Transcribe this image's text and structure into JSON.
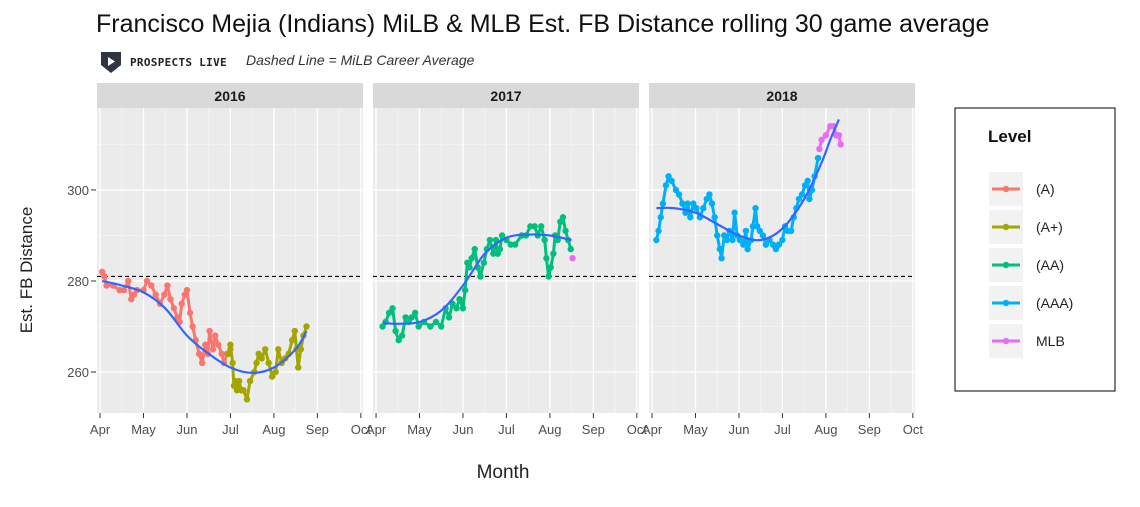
{
  "title": "Francisco Mejia (Indians) MiLB & MLB Est. FB Distance rolling 30 game average",
  "brand": {
    "name": "PROSPECTS LIVE",
    "logo_icon": "play-shield-icon"
  },
  "subtitle": "Dashed Line = MiLB Career Average",
  "chart_data": {
    "type": "line",
    "xlabel": "Month",
    "ylabel": "Est. FB Distance",
    "ylim": [
      251,
      318
    ],
    "yticks": [
      260,
      280,
      300
    ],
    "xticks": [
      "Apr",
      "May",
      "Jun",
      "Jul",
      "Aug",
      "Sep",
      "Oct"
    ],
    "xlim_month": [
      3.93,
      10.05
    ],
    "reference_line": {
      "value": 281,
      "style": "dashed"
    },
    "grid": true,
    "legend": {
      "title": "Level",
      "position": "right",
      "entries": [
        {
          "label": "(A)",
          "color": "#F8766D"
        },
        {
          "label": "(A+)",
          "color": "#A3A500"
        },
        {
          "label": "(AA)",
          "color": "#00BF7D"
        },
        {
          "label": "(AAA)",
          "color": "#00B0F6"
        },
        {
          "label": "MLB",
          "color": "#E76BF3"
        }
      ]
    },
    "smooth_color": "#3366FF",
    "panels": [
      {
        "label": "2016",
        "series": [
          {
            "name": "(A)",
            "points": [
              [
                4.05,
                282
              ],
              [
                4.1,
                281
              ],
              [
                4.15,
                279
              ],
              [
                4.3,
                279
              ],
              [
                4.45,
                278
              ],
              [
                4.55,
                278
              ],
              [
                4.65,
                280
              ],
              [
                4.72,
                276
              ],
              [
                4.78,
                277
              ],
              [
                4.85,
                278
              ],
              [
                5.0,
                278
              ],
              [
                5.08,
                280
              ],
              [
                5.18,
                279
              ],
              [
                5.28,
                277
              ],
              [
                5.38,
                275
              ],
              [
                5.48,
                277
              ],
              [
                5.55,
                279
              ],
              [
                5.62,
                276
              ],
              [
                5.7,
                274
              ],
              [
                5.78,
                272
              ],
              [
                5.83,
                271
              ],
              [
                5.88,
                275
              ],
              [
                5.95,
                277
              ],
              [
                6.0,
                278
              ],
              [
                6.07,
                273
              ],
              [
                6.13,
                270
              ],
              [
                6.2,
                267
              ],
              [
                6.28,
                264
              ],
              [
                6.35,
                262
              ],
              [
                6.42,
                266
              ],
              [
                6.48,
                264
              ],
              [
                6.52,
                269
              ],
              [
                6.6,
                265
              ],
              [
                6.65,
                268
              ],
              [
                6.72,
                266
              ],
              [
                6.8,
                264
              ],
              [
                6.85,
                262
              ],
              [
                6.92,
                264
              ],
              [
                7.0,
                265
              ]
            ]
          },
          {
            "name": "(A+)",
            "points": [
              [
                6.95,
                264
              ],
              [
                7.0,
                266
              ],
              [
                7.05,
                262
              ],
              [
                7.08,
                257
              ],
              [
                7.12,
                258
              ],
              [
                7.15,
                256
              ],
              [
                7.2,
                258
              ],
              [
                7.25,
                256
              ],
              [
                7.3,
                256
              ],
              [
                7.38,
                254
              ],
              [
                7.45,
                258
              ],
              [
                7.55,
                260
              ],
              [
                7.6,
                262
              ],
              [
                7.65,
                264
              ],
              [
                7.72,
                263
              ],
              [
                7.8,
                265
              ],
              [
                7.88,
                262
              ],
              [
                7.96,
                259
              ],
              [
                8.04,
                260
              ],
              [
                8.1,
                265
              ],
              [
                8.18,
                262
              ],
              [
                8.26,
                263
              ],
              [
                8.34,
                264
              ],
              [
                8.42,
                267
              ],
              [
                8.48,
                269
              ],
              [
                8.52,
                265
              ],
              [
                8.56,
                261
              ],
              [
                8.62,
                265
              ],
              [
                8.68,
                268
              ],
              [
                8.75,
                270
              ]
            ]
          }
        ],
        "smooth": [
          [
            4.05,
            280
          ],
          [
            4.5,
            279
          ],
          [
            5.0,
            277.5
          ],
          [
            5.5,
            274
          ],
          [
            6.0,
            268
          ],
          [
            6.5,
            264
          ],
          [
            7.0,
            261
          ],
          [
            7.5,
            259.8
          ],
          [
            8.0,
            261
          ],
          [
            8.5,
            265
          ],
          [
            8.75,
            269
          ]
        ]
      },
      {
        "label": "2017",
        "series": [
          {
            "name": "(AA)",
            "points": [
              [
                4.15,
                270
              ],
              [
                4.22,
                271
              ],
              [
                4.3,
                273
              ],
              [
                4.38,
                274
              ],
              [
                4.45,
                269
              ],
              [
                4.52,
                267
              ],
              [
                4.6,
                268
              ],
              [
                4.68,
                272
              ],
              [
                4.75,
                271
              ],
              [
                4.82,
                272
              ],
              [
                4.9,
                273
              ],
              [
                4.98,
                270
              ],
              [
                5.1,
                271
              ],
              [
                5.25,
                270
              ],
              [
                5.38,
                271
              ],
              [
                5.5,
                270
              ],
              [
                5.6,
                274
              ],
              [
                5.68,
                272
              ],
              [
                5.76,
                275
              ],
              [
                5.85,
                274
              ],
              [
                5.92,
                276
              ],
              [
                6.0,
                274
              ],
              [
                6.05,
                278
              ],
              [
                6.1,
                284
              ],
              [
                6.15,
                283
              ],
              [
                6.2,
                285
              ],
              [
                6.27,
                287
              ],
              [
                6.34,
                283
              ],
              [
                6.4,
                281
              ],
              [
                6.48,
                284
              ],
              [
                6.55,
                287
              ],
              [
                6.62,
                289
              ],
              [
                6.7,
                286
              ],
              [
                6.76,
                289
              ],
              [
                6.8,
                286
              ],
              [
                6.85,
                287
              ],
              [
                6.9,
                290
              ],
              [
                7.0,
                289
              ],
              [
                7.1,
                288
              ],
              [
                7.2,
                288
              ],
              [
                7.35,
                290
              ],
              [
                7.45,
                290
              ],
              [
                7.55,
                292
              ],
              [
                7.65,
                292
              ],
              [
                7.72,
                290
              ],
              [
                7.8,
                292
              ],
              [
                7.88,
                289
              ],
              [
                7.92,
                285
              ],
              [
                7.97,
                281
              ],
              [
                8.02,
                283
              ],
              [
                8.08,
                286
              ],
              [
                8.12,
                290
              ],
              [
                8.18,
                289
              ],
              [
                8.24,
                293
              ],
              [
                8.3,
                294
              ],
              [
                8.36,
                291
              ],
              [
                8.42,
                289
              ],
              [
                8.48,
                287
              ]
            ]
          },
          {
            "name": "MLB",
            "points": [
              [
                8.52,
                285
              ]
            ]
          }
        ],
        "smooth": [
          [
            4.15,
            270.8
          ],
          [
            4.5,
            270.6
          ],
          [
            5.0,
            271
          ],
          [
            5.5,
            273.5
          ],
          [
            6.0,
            279
          ],
          [
            6.5,
            286
          ],
          [
            7.0,
            289.5
          ],
          [
            7.5,
            290.2
          ],
          [
            8.0,
            290
          ],
          [
            8.5,
            289
          ]
        ]
      },
      {
        "label": "2018",
        "series": [
          {
            "name": "(AAA)",
            "points": [
              [
                4.1,
                289
              ],
              [
                4.15,
                291
              ],
              [
                4.2,
                294
              ],
              [
                4.25,
                297
              ],
              [
                4.32,
                301
              ],
              [
                4.38,
                303
              ],
              [
                4.45,
                302
              ],
              [
                4.55,
                300
              ],
              [
                4.62,
                299
              ],
              [
                4.7,
                297
              ],
              [
                4.77,
                295
              ],
              [
                4.82,
                297
              ],
              [
                4.88,
                294
              ],
              [
                4.95,
                297
              ],
              [
                5.02,
                296
              ],
              [
                5.1,
                294
              ],
              [
                5.18,
                296
              ],
              [
                5.26,
                298
              ],
              [
                5.32,
                299
              ],
              [
                5.38,
                297
              ],
              [
                5.44,
                294
              ],
              [
                5.5,
                290
              ],
              [
                5.56,
                287
              ],
              [
                5.6,
                285
              ],
              [
                5.66,
                290
              ],
              [
                5.72,
                289
              ],
              [
                5.78,
                291
              ],
              [
                5.85,
                289
              ],
              [
                5.9,
                295
              ],
              [
                5.96,
                290
              ],
              [
                6.02,
                289
              ],
              [
                6.1,
                288
              ],
              [
                6.16,
                291
              ],
              [
                6.2,
                287
              ],
              [
                6.28,
                289
              ],
              [
                6.32,
                292
              ],
              [
                6.38,
                296
              ],
              [
                6.42,
                292
              ],
              [
                6.48,
                291
              ],
              [
                6.55,
                290
              ],
              [
                6.62,
                288
              ],
              [
                6.7,
                289
              ],
              [
                6.78,
                288
              ],
              [
                6.85,
                287
              ],
              [
                6.92,
                288
              ],
              [
                7.0,
                289
              ],
              [
                7.06,
                292
              ],
              [
                7.12,
                291
              ],
              [
                7.2,
                291
              ],
              [
                7.26,
                294
              ],
              [
                7.32,
                296
              ],
              [
                7.38,
                298
              ],
              [
                7.45,
                299
              ],
              [
                7.52,
                301
              ],
              [
                7.58,
                302
              ],
              [
                7.62,
                298
              ],
              [
                7.68,
                300
              ],
              [
                7.74,
                303
              ],
              [
                7.82,
                307
              ]
            ]
          },
          {
            "name": "MLB",
            "points": [
              [
                7.85,
                309
              ],
              [
                7.9,
                311
              ],
              [
                8.0,
                312
              ],
              [
                8.1,
                314
              ],
              [
                8.18,
                314
              ],
              [
                8.24,
                312
              ],
              [
                8.3,
                312
              ],
              [
                8.34,
                310
              ]
            ]
          }
        ],
        "smooth": [
          [
            4.1,
            296
          ],
          [
            4.5,
            296
          ],
          [
            5.0,
            295
          ],
          [
            5.5,
            292.5
          ],
          [
            6.0,
            290
          ],
          [
            6.5,
            289
          ],
          [
            7.0,
            291.5
          ],
          [
            7.5,
            298
          ],
          [
            7.9,
            306
          ],
          [
            8.1,
            311
          ],
          [
            8.3,
            315.5
          ]
        ]
      }
    ]
  }
}
